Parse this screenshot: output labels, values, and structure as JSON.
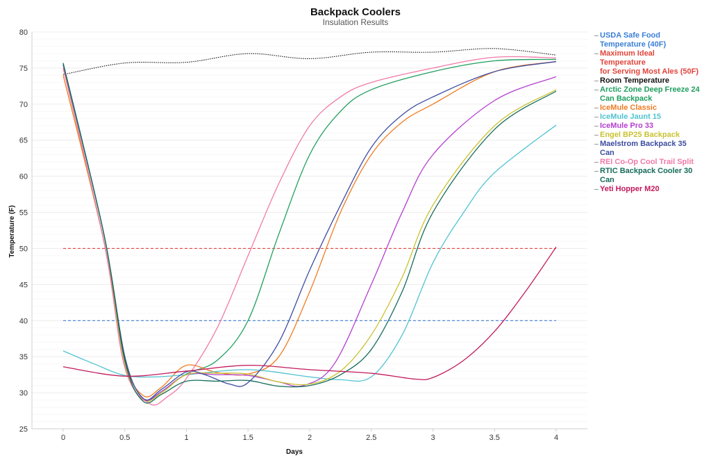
{
  "chart_data": {
    "type": "line",
    "title": "Backpack Coolers",
    "subtitle": "Insulation Results",
    "xlabel": "Days",
    "ylabel": "Temperature (F)",
    "xlim": [
      0,
      4
    ],
    "ylim": [
      25,
      80
    ],
    "xticks": [
      "0",
      "0.5",
      "1",
      "1.5",
      "2",
      "2.5",
      "3",
      "3.5",
      "4"
    ],
    "yticks": [
      "25",
      "30",
      "35",
      "40",
      "45",
      "50",
      "55",
      "60",
      "65",
      "70",
      "75",
      "80"
    ],
    "grid": "horizontal",
    "legend_position": "right",
    "series": [
      {
        "name": "USDA Safe Food Temperature (40F)",
        "legend": [
          "USDA Safe Food",
          "Temperature (40F)"
        ],
        "color": "#3b7fd6",
        "style": "dashed",
        "x": [
          0,
          4
        ],
        "values": [
          40,
          40
        ]
      },
      {
        "name": "Maximum Ideal Temperature for Serving Most Ales (50F)",
        "legend": [
          "Maximum Ideal",
          "Temperature",
          "for Serving Most Ales (50F)"
        ],
        "color": "#e0443a",
        "style": "dashed",
        "x": [
          0,
          4
        ],
        "values": [
          50,
          50
        ]
      },
      {
        "name": "Room Temperature",
        "legend": [
          "Room Temperature"
        ],
        "color": "#111111",
        "style": "dotted",
        "x": [
          0,
          0.5,
          1,
          1.5,
          2,
          2.5,
          3,
          3.5,
          4
        ],
        "values": [
          74.1,
          75.7,
          75.8,
          77.0,
          76.3,
          77.2,
          77.2,
          77.7,
          76.8
        ]
      },
      {
        "name": "Arctic Zone Deep Freeze 24 Can Backpack",
        "legend": [
          "Arctic Zone Deep Freeze 24",
          "Can Backpack"
        ],
        "color": "#1f9e5e",
        "style": "solid",
        "x": [
          0,
          0.33,
          0.5,
          0.65,
          0.8,
          1,
          1.25,
          1.5,
          1.75,
          2,
          2.25,
          2.5,
          3,
          3.5,
          4
        ],
        "values": [
          75.5,
          52,
          35,
          29.2,
          30.2,
          32.6,
          34.5,
          40,
          52,
          63,
          69,
          72,
          74.5,
          76,
          76.2
        ]
      },
      {
        "name": "IceMule Classic",
        "legend": [
          "IceMule Classic"
        ],
        "color": "#f07b22",
        "style": "solid",
        "x": [
          0,
          0.33,
          0.5,
          0.65,
          0.8,
          1,
          1.25,
          1.5,
          1.75,
          2,
          2.25,
          2.5,
          2.75,
          3,
          3.5,
          4
        ],
        "values": [
          74.0,
          51,
          34.5,
          29.6,
          30.8,
          33.8,
          32.8,
          32.6,
          35,
          44,
          55,
          63,
          67.5,
          70,
          74.5,
          75.9
        ]
      },
      {
        "name": "IceMule Jaunt 15",
        "legend": [
          "IceMule Jaunt 15"
        ],
        "color": "#4fc3d1",
        "style": "solid",
        "x": [
          0,
          0.25,
          0.5,
          0.75,
          1,
          1.5,
          2,
          2.25,
          2.5,
          2.75,
          3,
          3.25,
          3.5,
          4
        ],
        "values": [
          35.8,
          34.0,
          32.4,
          32.2,
          32.5,
          33.2,
          32.2,
          31.8,
          32.2,
          38,
          48,
          55,
          60.5,
          67.1
        ]
      },
      {
        "name": "IceMule Pro 33",
        "legend": [
          "IceMule Pro 33"
        ],
        "color": "#b43fd0",
        "style": "solid",
        "x": [
          0,
          0.33,
          0.5,
          0.65,
          0.8,
          1,
          1.25,
          1.5,
          1.75,
          1.95,
          2.2,
          2.5,
          2.75,
          3,
          3.5,
          4
        ],
        "values": [
          75.0,
          51,
          34,
          29.1,
          30.2,
          32.5,
          32.5,
          32.4,
          31.5,
          31.0,
          34,
          45,
          55,
          63,
          70.5,
          73.8
        ]
      },
      {
        "name": "Engel BP25 Backpack",
        "legend": [
          "Engel BP25 Backpack"
        ],
        "color": "#c9c232",
        "style": "solid",
        "x": [
          0,
          0.33,
          0.5,
          0.65,
          0.8,
          1,
          1.25,
          1.5,
          1.75,
          2,
          2.25,
          2.5,
          2.75,
          3,
          3.5,
          4
        ],
        "values": [
          75.0,
          51,
          34,
          29.0,
          30.0,
          32.5,
          32.7,
          32.6,
          31.5,
          31.2,
          33,
          38,
          46,
          56,
          67,
          72.0
        ]
      },
      {
        "name": "Maelstrom Backpack 35 Can",
        "legend": [
          "Maelstrom Backpack 35",
          "Can"
        ],
        "color": "#3c4ca0",
        "style": "solid",
        "x": [
          0,
          0.33,
          0.5,
          0.65,
          0.8,
          1,
          1.15,
          1.35,
          1.5,
          1.75,
          2,
          2.25,
          2.5,
          2.75,
          3,
          3.5,
          4
        ],
        "values": [
          75.5,
          52,
          35,
          29.2,
          30.5,
          32.9,
          32.5,
          31.2,
          31.4,
          37,
          47,
          56,
          64,
          68.5,
          71,
          74.5,
          75.9
        ]
      },
      {
        "name": "REI Co-Op Cool Trail Split",
        "legend": [
          "REI Co-Op Cool Trail Split"
        ],
        "color": "#f07aa8",
        "style": "solid",
        "x": [
          0,
          0.33,
          0.5,
          0.7,
          0.85,
          1,
          1.25,
          1.5,
          1.75,
          2,
          2.25,
          2.5,
          3,
          3.5,
          4
        ],
        "values": [
          75.0,
          51,
          33.5,
          28.5,
          29.5,
          32.0,
          39,
          49,
          59,
          67,
          71,
          73,
          75,
          76.5,
          76.4
        ]
      },
      {
        "name": "RTIC Backpack Cooler 30 Can",
        "legend": [
          "RTIC Backpack Cooler 30",
          "Can"
        ],
        "color": "#156b5a",
        "style": "solid",
        "x": [
          0,
          0.33,
          0.5,
          0.65,
          0.8,
          1,
          1.25,
          1.5,
          1.75,
          2,
          2.25,
          2.5,
          2.75,
          3,
          3.5,
          4
        ],
        "values": [
          75.7,
          52,
          34.5,
          28.8,
          29.8,
          31.6,
          31.6,
          31.7,
          30.9,
          31.0,
          32.5,
          36,
          44,
          55,
          66.5,
          71.8
        ]
      },
      {
        "name": "Yeti Hopper M20",
        "legend": [
          "Yeti Hopper M20"
        ],
        "color": "#c2195b",
        "style": "solid",
        "x": [
          0,
          0.5,
          1,
          1.5,
          2,
          2.5,
          2.85,
          3.0,
          3.25,
          3.5,
          3.75,
          4
        ],
        "values": [
          33.6,
          32.3,
          33.0,
          33.8,
          33.2,
          32.7,
          31.9,
          32.1,
          34.5,
          38.5,
          44,
          50.2
        ]
      }
    ]
  }
}
